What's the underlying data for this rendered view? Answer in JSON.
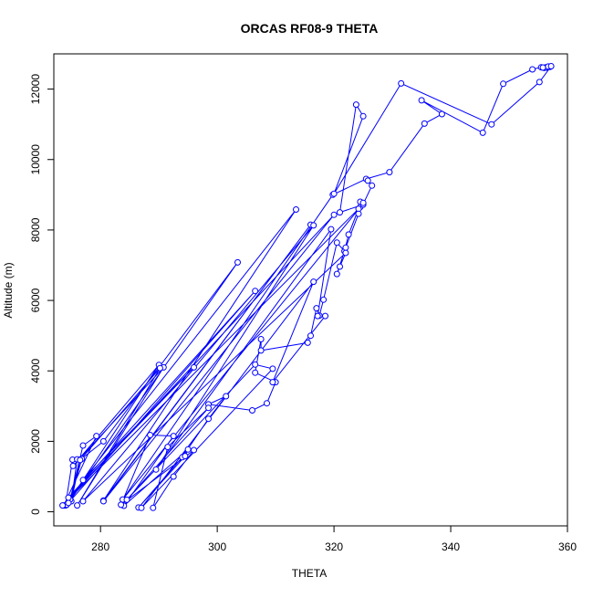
{
  "chart_data": {
    "type": "line",
    "title": "ORCAS RF08-9 THETA",
    "xlabel": "THETA",
    "ylabel": "Altitude (m)",
    "xlim": [
      272,
      360
    ],
    "ylim": [
      -400,
      13000
    ],
    "x_ticks": [
      280,
      300,
      320,
      340,
      360
    ],
    "y_ticks": [
      0,
      2000,
      4000,
      6000,
      8000,
      10000,
      12000
    ],
    "grid": false,
    "series": [
      {
        "marker": "open-circle",
        "color": "#0000ff",
        "points": [
          [
            274.0,
            180
          ],
          [
            275.2,
            1480
          ],
          [
            276.5,
            1480
          ],
          [
            275.0,
            300
          ],
          [
            276.0,
            1490
          ],
          [
            276.8,
            1500
          ],
          [
            274.8,
            350
          ],
          [
            277.0,
            1880
          ],
          [
            279.3,
            2150
          ],
          [
            273.7,
            180
          ],
          [
            274.2,
            200
          ],
          [
            290.0,
            4170
          ],
          [
            275.3,
            1300
          ],
          [
            290.8,
            4100
          ],
          [
            276.0,
            180
          ],
          [
            290.2,
            4080
          ],
          [
            276.5,
            1470
          ],
          [
            280.5,
            2000
          ],
          [
            303.5,
            7080
          ],
          [
            274.5,
            250
          ],
          [
            306.5,
            6270
          ],
          [
            274.5,
            400
          ],
          [
            296.0,
            4100
          ],
          [
            277.0,
            900
          ],
          [
            313.5,
            8580
          ],
          [
            280.5,
            320
          ],
          [
            316.0,
            8150
          ],
          [
            280.5,
            300
          ],
          [
            320.0,
            8430
          ],
          [
            273.5,
            180
          ],
          [
            324.5,
            8650
          ],
          [
            283.8,
            350
          ],
          [
            319.8,
            9000
          ],
          [
            325.5,
            9450
          ],
          [
            329.5,
            9640
          ],
          [
            335.5,
            11020
          ],
          [
            338.5,
            11290
          ],
          [
            335.0,
            11680
          ],
          [
            345.5,
            10760
          ],
          [
            349.0,
            12150
          ],
          [
            354.0,
            12560
          ],
          [
            355.5,
            12620
          ],
          [
            356.0,
            12600
          ],
          [
            356.5,
            12610
          ],
          [
            357.0,
            12630
          ],
          [
            356.3,
            12620
          ],
          [
            355.8,
            12610
          ],
          [
            356.7,
            12640
          ],
          [
            357.2,
            12650
          ],
          [
            355.2,
            12200
          ],
          [
            347.0,
            11000
          ],
          [
            331.5,
            12160
          ],
          [
            320.0,
            9030
          ],
          [
            325.0,
            11230
          ],
          [
            323.8,
            11560
          ],
          [
            321.0,
            8500
          ],
          [
            325.0,
            8720
          ],
          [
            324.5,
            8800
          ],
          [
            325.0,
            8770
          ],
          [
            324.2,
            8600
          ],
          [
            322.5,
            7870
          ],
          [
            321.8,
            7400
          ],
          [
            320.5,
            7640
          ],
          [
            318.2,
            6020
          ],
          [
            317.5,
            5570
          ],
          [
            317.0,
            5780
          ],
          [
            316.0,
            5000
          ],
          [
            315.5,
            4800
          ],
          [
            307.5,
            4580
          ],
          [
            307.5,
            4900
          ],
          [
            306.5,
            3950
          ],
          [
            310.0,
            3680
          ],
          [
            308.5,
            3080
          ],
          [
            306.0,
            2880
          ],
          [
            298.5,
            3050
          ],
          [
            301.5,
            3280
          ],
          [
            298.5,
            2640
          ],
          [
            294.0,
            1550
          ],
          [
            286.5,
            120
          ],
          [
            294.5,
            1580
          ],
          [
            295.0,
            1770
          ],
          [
            284.0,
            170
          ],
          [
            292.5,
            2150
          ],
          [
            288.5,
            2180
          ],
          [
            283.5,
            200
          ],
          [
            296.0,
            1750
          ],
          [
            292.5,
            1000
          ],
          [
            289.0,
            110
          ],
          [
            291.5,
            1840
          ],
          [
            298.5,
            2950
          ],
          [
            284.5,
            340
          ],
          [
            306.5,
            4180
          ],
          [
            309.5,
            4060
          ],
          [
            287.0,
            110
          ],
          [
            316.5,
            6530
          ],
          [
            309.5,
            3680
          ],
          [
            318.5,
            5560
          ],
          [
            317.2,
            5560
          ],
          [
            319.5,
            8020
          ],
          [
            289.5,
            1200
          ],
          [
            316.5,
            8130
          ],
          [
            277.0,
            300
          ],
          [
            322.0,
            7350
          ],
          [
            321.0,
            6960
          ],
          [
            320.5,
            6750
          ],
          [
            322.0,
            7500
          ],
          [
            324.2,
            8460
          ],
          [
            326.5,
            9260
          ],
          [
            325.8,
            9400
          ]
        ]
      }
    ]
  }
}
